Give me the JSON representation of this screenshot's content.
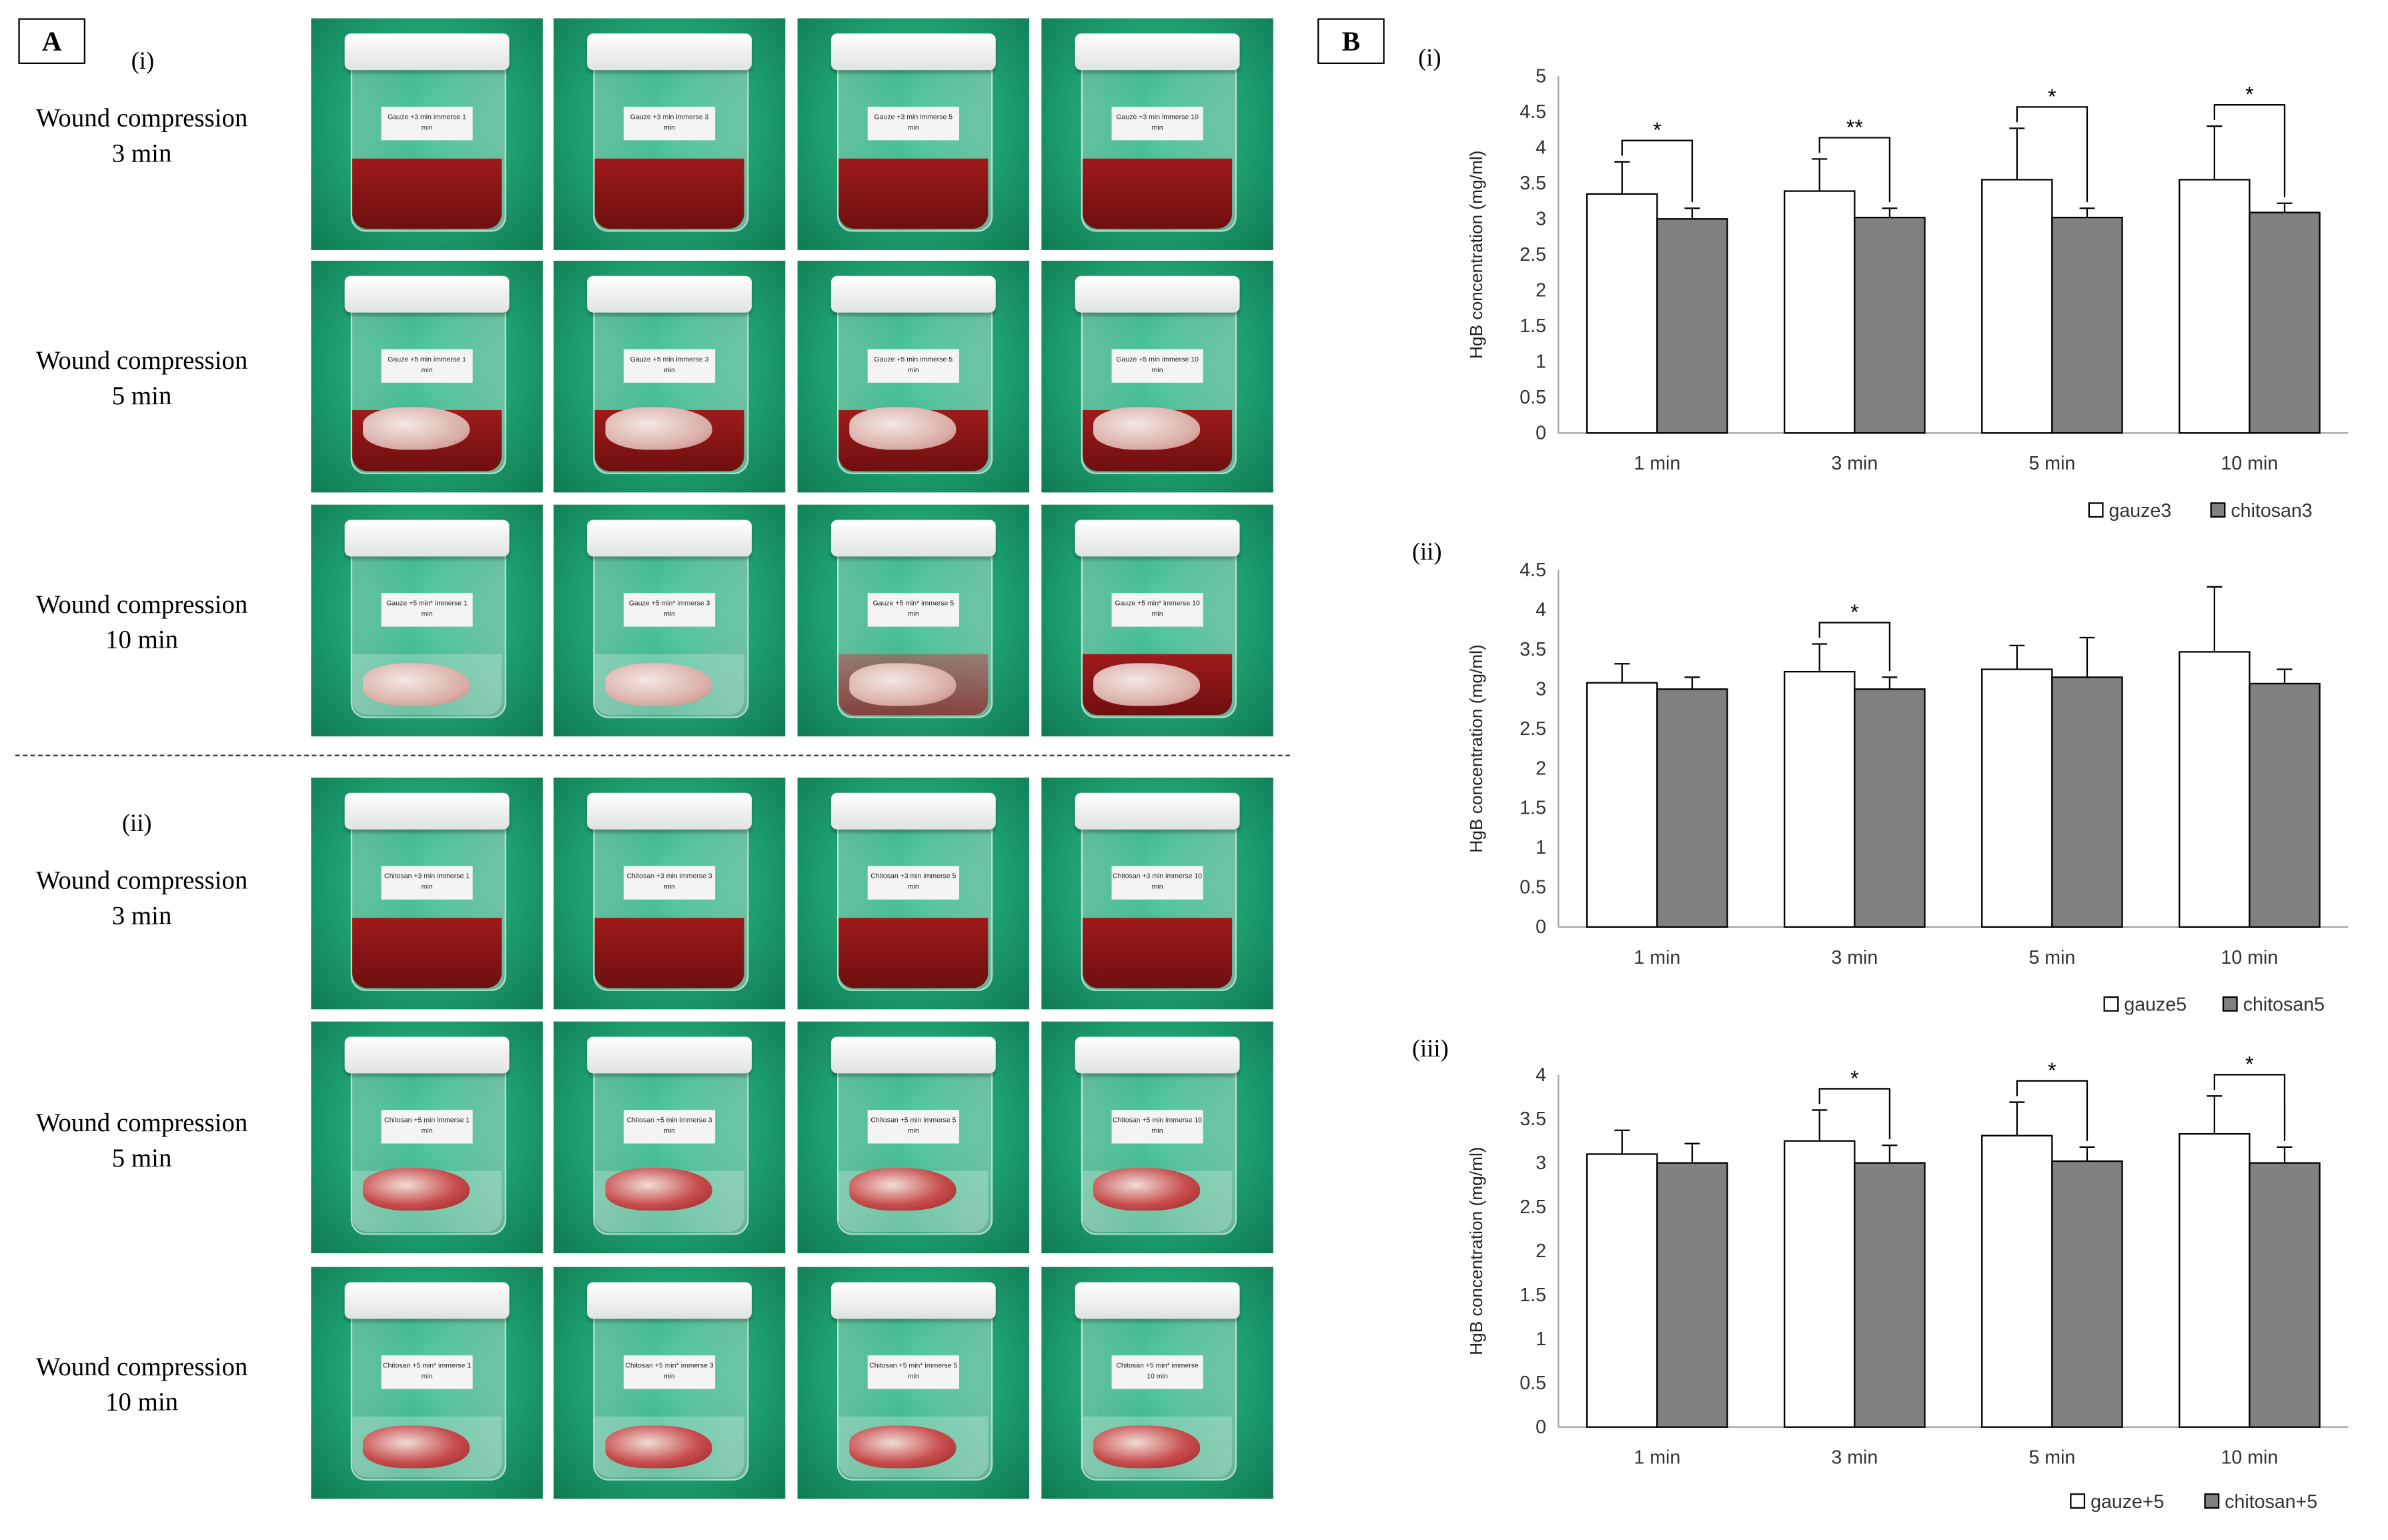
{
  "panel_a": {
    "label": "A",
    "group_i": "(i)",
    "group_ii": "(ii)",
    "row_labels_i": [
      {
        "line1": "Wound compression",
        "line2": "3 min"
      },
      {
        "line1": "Wound compression",
        "line2": "5 min"
      },
      {
        "line1": "Wound compression",
        "line2": "10 min"
      }
    ],
    "row_labels_ii": [
      {
        "line1": "Wound compression",
        "line2": "3 min"
      },
      {
        "line1": "Wound compression",
        "line2": "5 min"
      },
      {
        "line1": "Wound compression",
        "line2": "10 min"
      }
    ],
    "jar_labels": [
      [
        "Gauze +3 min immerse 1 min",
        "Gauze +3 min immerse 3 min",
        "Gauze +3 min immerse 5 min",
        "Gauze +3 min immerse 10 min"
      ],
      [
        "Gauze +5 min immerse 1 min",
        "Gauze +5 min immerse 3 min",
        "Gauze +5 min immerse 5 min",
        "Gauze +5 min immerse 10 min"
      ],
      [
        "Gauze +5 min* immerse 1 min",
        "Gauze +5 min* immerse 3 min",
        "Gauze +5 min* immerse 5 min",
        "Gauze +5 min* immerse 10 min"
      ],
      [
        "Chitosan +3 min immerse 1 min",
        "Chitosan +3 min immerse 3 min",
        "Chitosan +3 min immerse 5 min",
        "Chitosan +3 min immerse 10 min"
      ],
      [
        "Chitosan +5 min immerse 1 min",
        "Chitosan +5 min immerse 3 min",
        "Chitosan +5 min immerse 5 min",
        "Chitosan +5 min immerse 10 min"
      ],
      [
        "Chitosan +5 min* immerse 1 min",
        "Chitosan +5 min* immerse 3 min",
        "Chitosan +5 min* immerse 5 min",
        "Chitosan +5 min* immerse 10 min"
      ]
    ]
  },
  "panel_b": {
    "label": "B"
  },
  "colors": {
    "gauze_fill": "#ffffff",
    "chitosan_fill": "#808080",
    "axis": "#a6a6a6",
    "bar_stroke": "#000000"
  },
  "chart_data": [
    {
      "type": "bar",
      "panel": "(i)",
      "ylabel": "HgB concentration (mg/ml)",
      "categories": [
        "1 min",
        "3 min",
        "5 min",
        "10 min"
      ],
      "ylim": [
        0,
        5
      ],
      "yticks": [
        "0",
        "0.5",
        "1",
        "1.5",
        "2",
        "2.5",
        "3",
        "3.5",
        "4",
        "4.5",
        "5"
      ],
      "series": [
        {
          "name": "gauze3",
          "values": [
            3.35,
            3.39,
            3.55,
            3.55
          ],
          "errors": [
            0.45,
            0.45,
            0.72,
            0.75
          ]
        },
        {
          "name": "chitosan3",
          "values": [
            3.0,
            3.02,
            3.02,
            3.09
          ],
          "errors": [
            0.15,
            0.13,
            0.13,
            0.13
          ]
        }
      ],
      "significance": [
        "*",
        "**",
        "*",
        "*"
      ]
    },
    {
      "type": "bar",
      "panel": "(ii)",
      "ylabel": "HgB concentration (mg/ml)",
      "categories": [
        "1 min",
        "3 min",
        "5 min",
        "10 min"
      ],
      "ylim": [
        0,
        4.5
      ],
      "yticks": [
        "0",
        "0.5",
        "1",
        "1.5",
        "2",
        "2.5",
        "3",
        "3.5",
        "4",
        "4.5"
      ],
      "series": [
        {
          "name": "gauze5",
          "values": [
            3.08,
            3.22,
            3.25,
            3.47
          ],
          "errors": [
            0.24,
            0.35,
            0.3,
            0.82
          ]
        },
        {
          "name": "chitosan5",
          "values": [
            3.0,
            3.0,
            3.15,
            3.07
          ],
          "errors": [
            0.15,
            0.15,
            0.5,
            0.18
          ]
        }
      ],
      "significance": [
        "",
        "*",
        "",
        ""
      ]
    },
    {
      "type": "bar",
      "panel": "(iii)",
      "ylabel": "HgB concentration (mg/ml)",
      "categories": [
        "1 min",
        "3 min",
        "5 min",
        "10 min"
      ],
      "ylim": [
        0,
        4
      ],
      "yticks": [
        "0",
        "0.5",
        "1",
        "1.5",
        "2",
        "2.5",
        "3",
        "3.5",
        "4"
      ],
      "series": [
        {
          "name": "gauze+5",
          "values": [
            3.1,
            3.25,
            3.31,
            3.33
          ],
          "errors": [
            0.27,
            0.35,
            0.38,
            0.43
          ]
        },
        {
          "name": "chitosan+5",
          "values": [
            3.0,
            3.0,
            3.02,
            3.0
          ],
          "errors": [
            0.22,
            0.2,
            0.16,
            0.18
          ]
        }
      ],
      "significance": [
        "",
        "*",
        "*",
        "*"
      ]
    }
  ]
}
